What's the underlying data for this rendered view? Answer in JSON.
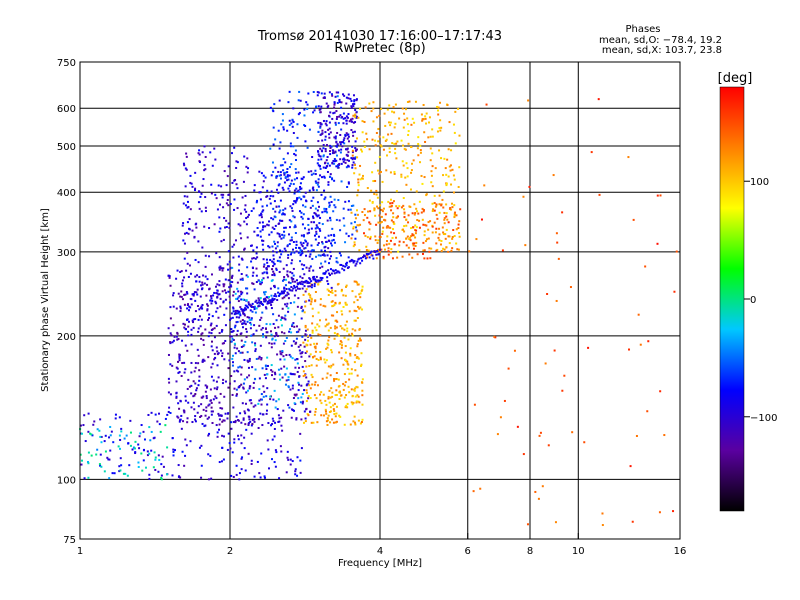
{
  "chart_data": {
    "type": "scatter",
    "title": "Tromsø 20141030 17:16:00–17:17:43",
    "subtitle": "RwPretec (8p)",
    "xlabel": "Frequency [MHz]",
    "ylabel": "Stationary phase Virtual Height [km]",
    "x_scale": "log",
    "y_scale": "log",
    "xlim": [
      1,
      16
    ],
    "ylim": [
      75,
      750
    ],
    "x_ticks": [
      1,
      2,
      4,
      6,
      8,
      10,
      16
    ],
    "y_ticks": [
      75,
      100,
      200,
      300,
      400,
      500,
      600,
      750
    ],
    "grid": true,
    "phase_box": {
      "heading": "Phases",
      "line1": "mean, sd,O: −78.4, 19.2",
      "line2": "mean, sd,X: 103.7, 23.8"
    },
    "colorbar": {
      "label": "[deg]",
      "range": [
        -180,
        180
      ],
      "ticks": [
        "100",
        "0",
        "−100"
      ],
      "tick_values": [
        100,
        0,
        -100
      ],
      "colors": [
        "#000000",
        "#5a00a0",
        "#0000ff",
        "#00c8ff",
        "#00ff00",
        "#ffff00",
        "#ff8000",
        "#ff0000"
      ]
    },
    "regions": [
      {
        "fmin": 1.0,
        "fmax": 2.8,
        "hmin": 100,
        "hmax": 140,
        "phase": -95,
        "count": 220
      },
      {
        "fmin": 1.5,
        "fmax": 2.9,
        "hmin": 130,
        "hmax": 280,
        "phase": -110,
        "count": 650
      },
      {
        "fmin": 1.6,
        "fmax": 2.2,
        "hmin": 200,
        "hmax": 500,
        "phase": -100,
        "count": 260
      },
      {
        "fmin": 2.2,
        "fmax": 3.2,
        "hmin": 250,
        "hmax": 450,
        "phase": -90,
        "count": 300
      },
      {
        "fmin": 2.4,
        "fmax": 3.6,
        "hmin": 280,
        "hmax": 650,
        "phase": -70,
        "count": 330
      },
      {
        "fmin": 3.0,
        "fmax": 3.6,
        "hmin": 450,
        "hmax": 650,
        "phase": -105,
        "count": 180
      },
      {
        "fmin": 3.5,
        "fmax": 5.8,
        "hmin": 300,
        "hmax": 620,
        "phase": 110,
        "count": 360
      },
      {
        "fmin": 3.7,
        "fmax": 5.8,
        "hmin": 290,
        "hmax": 380,
        "phase": 140,
        "count": 160
      },
      {
        "fmin": 2.8,
        "fmax": 3.7,
        "hmin": 130,
        "hmax": 260,
        "phase": 110,
        "count": 360
      },
      {
        "fmin": 2.0,
        "fmax": 2.8,
        "hmin": 140,
        "hmax": 280,
        "phase": -40,
        "count": 140
      },
      {
        "fmin": 1.0,
        "fmax": 1.5,
        "hmin": 100,
        "hmax": 130,
        "phase": -20,
        "count": 60
      },
      {
        "fmin": 6.0,
        "fmax": 16,
        "hmin": 80,
        "hmax": 640,
        "phase": 150,
        "count": 70
      }
    ],
    "trace": {
      "fmin": 2.0,
      "fmax": 4.0,
      "hmin": 220,
      "hmax": 300,
      "phase": -90
    }
  }
}
